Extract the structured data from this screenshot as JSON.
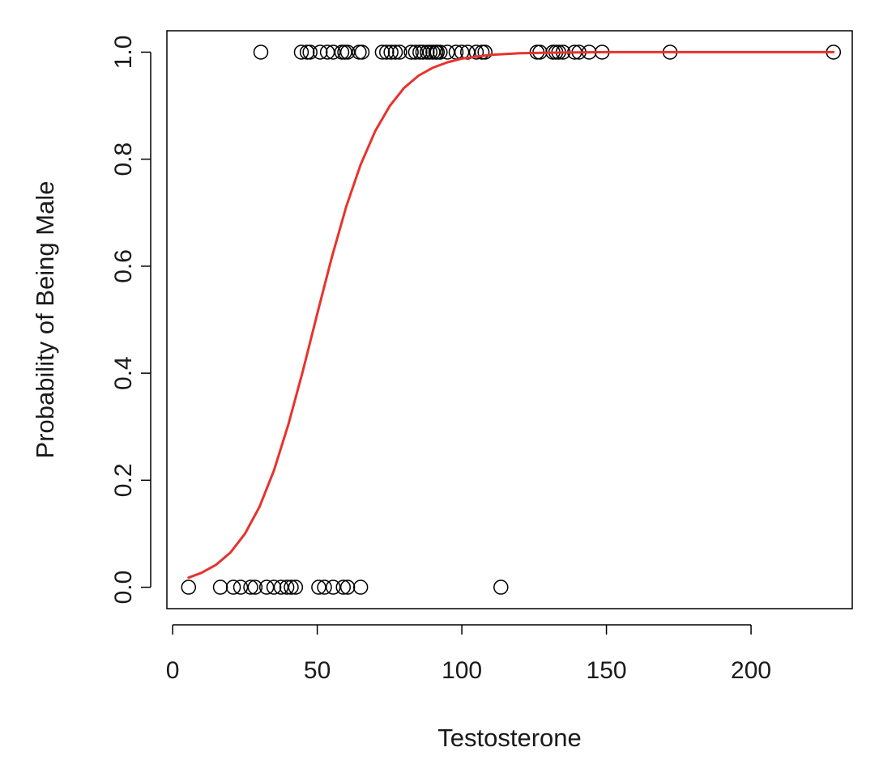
{
  "chart_data": {
    "type": "scatter",
    "title": "",
    "xlabel": "Testosterone",
    "ylabel": "Probability of Being Male",
    "xlim": [
      -2,
      235
    ],
    "ylim": [
      -0.04,
      1.04
    ],
    "xticks": [
      0,
      50,
      100,
      150,
      200
    ],
    "xtick_labels": [
      "0",
      "50",
      "100",
      "150",
      "200"
    ],
    "yticks": [
      0.0,
      0.2,
      0.4,
      0.6,
      0.8,
      1.0
    ],
    "ytick_labels": [
      "0.0",
      "0.2",
      "0.4",
      "0.6",
      "0.8",
      "1.0"
    ],
    "grid": false,
    "legend": "none",
    "series": [
      {
        "type": "scatter",
        "marker": "open-circle",
        "color": "#000000",
        "x": [
          30.5,
          44.5,
          46.5,
          47.5,
          51,
          53.5,
          55.5,
          58.5,
          59.5,
          60.5,
          64.5,
          65.5,
          72.5,
          74,
          75.5,
          77,
          78.5,
          82.5,
          84,
          85.5,
          86.5,
          88,
          89,
          90,
          91,
          91.5,
          92.5,
          95,
          98,
          100,
          102,
          105,
          107,
          108,
          126,
          127,
          131.5,
          132.5,
          133.5,
          135,
          139,
          140.5,
          144,
          148.5,
          172,
          228.5,
          5.5,
          16.5,
          21,
          23.5,
          27,
          28.5,
          32.5,
          35,
          37.5,
          39.5,
          41,
          42.5,
          50.5,
          52.5,
          55.5,
          59,
          60.5,
          65,
          113.5
        ],
        "y": [
          1,
          1,
          1,
          1,
          1,
          1,
          1,
          1,
          1,
          1,
          1,
          1,
          1,
          1,
          1,
          1,
          1,
          1,
          1,
          1,
          1,
          1,
          1,
          1,
          1,
          1,
          1,
          1,
          1,
          1,
          1,
          1,
          1,
          1,
          1,
          1,
          1,
          1,
          1,
          1,
          1,
          1,
          1,
          1,
          1,
          1,
          0,
          0,
          0,
          0,
          0,
          0,
          0,
          0,
          0,
          0,
          0,
          0,
          0,
          0,
          0,
          0,
          0,
          0,
          0
        ]
      },
      {
        "type": "line",
        "color": "#e8322d",
        "x": [
          5.5,
          10,
          15,
          20,
          25,
          30,
          35,
          40,
          45,
          50,
          55,
          60,
          65,
          70,
          75,
          80,
          85,
          90,
          95,
          100,
          110,
          120,
          130,
          150,
          175,
          200,
          228.5
        ],
        "y": [
          0.018,
          0.027,
          0.042,
          0.065,
          0.1,
          0.15,
          0.218,
          0.304,
          0.404,
          0.511,
          0.616,
          0.711,
          0.79,
          0.852,
          0.899,
          0.933,
          0.956,
          0.971,
          0.981,
          0.988,
          0.995,
          0.998,
          0.999,
          1.0,
          1.0,
          1.0,
          1.0
        ]
      }
    ]
  }
}
